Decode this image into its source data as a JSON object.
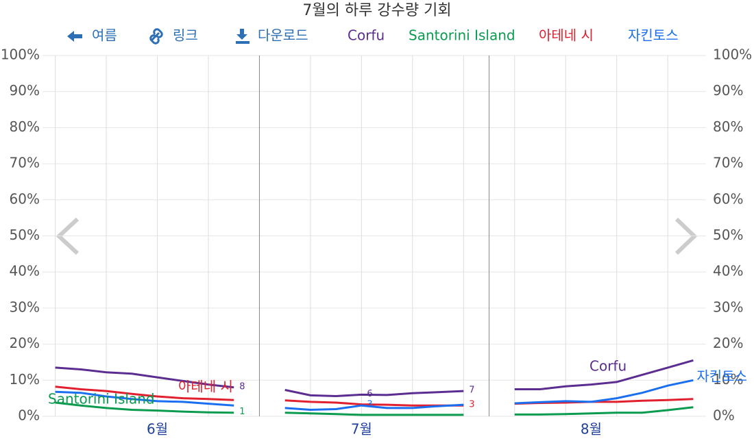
{
  "controls": {
    "summer": "여름",
    "link": "링크",
    "download": "다운로드"
  },
  "chart_data": {
    "type": "line",
    "title": "7월의 하루 강수량 기회",
    "categories": [
      null,
      null,
      null,
      null,
      "6월",
      null,
      null,
      null,
      null,
      null,
      null,
      null,
      "7월",
      null,
      null,
      null,
      null,
      null,
      null,
      null,
      null,
      "8월",
      null,
      null,
      null,
      null
    ],
    "series": [
      {
        "name": "Corfu",
        "color": "#5b2d90",
        "values": [
          13.5,
          13,
          12.2,
          11.8,
          10.8,
          9.8,
          8.8,
          8,
          null,
          7.3,
          5.8,
          5.6,
          6,
          5.9,
          6.4,
          6.7,
          7,
          null,
          7.5,
          7.5,
          8.3,
          8.8,
          9.5,
          11.5,
          13.5,
          15.5
        ],
        "value_labels": [
          null,
          null,
          null,
          null,
          null,
          null,
          null,
          "8",
          null,
          null,
          null,
          null,
          "6",
          null,
          null,
          null,
          "7",
          null,
          null,
          null,
          null,
          null,
          null,
          null,
          null,
          null
        ]
      },
      {
        "name": "Santorini Island",
        "color": "#0a9b4f",
        "values": [
          3.8,
          3,
          2.3,
          1.8,
          1.6,
          1.3,
          1.1,
          1,
          null,
          1,
          0.8,
          0.6,
          0.4,
          0.4,
          0.4,
          0.4,
          0.4,
          null,
          0.5,
          0.5,
          0.6,
          0.8,
          1,
          1,
          1.7,
          2.5
        ],
        "value_labels": [
          null,
          null,
          null,
          null,
          null,
          null,
          null,
          "1",
          null,
          null,
          null,
          null,
          null,
          null,
          null,
          null,
          null,
          null,
          null,
          null,
          null,
          null,
          null,
          null,
          null,
          null
        ]
      },
      {
        "name": "아테네 시",
        "color": "#e0202e",
        "values": [
          8.2,
          7.5,
          7,
          6.2,
          5.5,
          5,
          4.8,
          4.5,
          null,
          4.4,
          4,
          3.8,
          3.3,
          3.2,
          3,
          3,
          3,
          null,
          3.5,
          3.7,
          3.8,
          4,
          4,
          4.3,
          4.5,
          4.8
        ],
        "value_labels": [
          null,
          null,
          null,
          null,
          null,
          null,
          null,
          null,
          null,
          null,
          null,
          null,
          null,
          null,
          null,
          null,
          "3",
          null,
          null,
          null,
          null,
          null,
          null,
          null,
          null,
          null
        ]
      },
      {
        "name": "자킨토스",
        "color": "#1a6ff0",
        "values": [
          6.8,
          6.5,
          5.5,
          4.8,
          4.2,
          4,
          3.5,
          3,
          null,
          2.3,
          1.8,
          2,
          3,
          2.3,
          2.3,
          2.8,
          3.2,
          null,
          3.6,
          3.9,
          4.2,
          4,
          5,
          6.5,
          8.5,
          10
        ],
        "value_labels": [
          null,
          null,
          null,
          null,
          null,
          null,
          null,
          null,
          null,
          null,
          null,
          null,
          "3",
          null,
          null,
          null,
          null,
          null,
          null,
          null,
          null,
          null,
          null,
          null,
          null,
          null
        ]
      }
    ],
    "ylim": [
      0,
      100
    ],
    "yticks": [
      {
        "value": 0,
        "label": "0%"
      },
      {
        "value": 10,
        "label": "10%"
      },
      {
        "value": 20,
        "label": "20%"
      },
      {
        "value": 30,
        "label": "30%"
      },
      {
        "value": 40,
        "label": "40%"
      },
      {
        "value": 50,
        "label": "50%"
      },
      {
        "value": 60,
        "label": "60%"
      },
      {
        "value": 70,
        "label": "70%"
      },
      {
        "value": 80,
        "label": "80%"
      },
      {
        "value": 90,
        "label": "90%"
      },
      {
        "value": 100,
        "label": "100%"
      }
    ],
    "grid": true
  }
}
